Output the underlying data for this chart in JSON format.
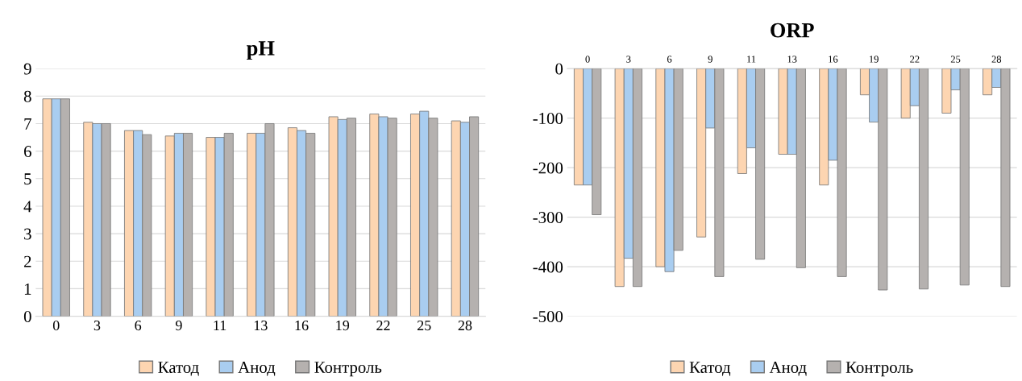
{
  "chart_data": [
    {
      "type": "bar",
      "title": "pH",
      "categories": [
        "0",
        "3",
        "6",
        "9",
        "11",
        "13",
        "16",
        "19",
        "22",
        "25",
        "28"
      ],
      "series": [
        {
          "name": "Катод",
          "color": "#fdd5b1",
          "values": [
            7.9,
            7.05,
            6.75,
            6.55,
            6.5,
            6.65,
            6.85,
            7.25,
            7.35,
            7.35,
            7.1
          ]
        },
        {
          "name": "Анод",
          "color": "#a9cdf0",
          "values": [
            7.9,
            7.0,
            6.75,
            6.65,
            6.5,
            6.65,
            6.75,
            7.15,
            7.25,
            7.45,
            7.05
          ]
        },
        {
          "name": "Контроль",
          "color": "#b5b1af",
          "values": [
            7.9,
            7.0,
            6.6,
            6.65,
            6.65,
            7.0,
            6.65,
            7.2,
            7.2,
            7.2,
            7.25
          ]
        }
      ],
      "ylim": [
        0,
        9
      ],
      "yticks": [
        0,
        1,
        2,
        3,
        4,
        5,
        6,
        7,
        8,
        9
      ],
      "grid": "y",
      "legend": "bottom"
    },
    {
      "type": "bar",
      "title": "ORP",
      "categories": [
        "0",
        "3",
        "6",
        "9",
        "11",
        "13",
        "16",
        "19",
        "22",
        "25",
        "28"
      ],
      "series": [
        {
          "name": "Катод",
          "color": "#fdd5b1",
          "values": [
            -235,
            -440,
            -400,
            -340,
            -212,
            -173,
            -235,
            -53,
            -100,
            -90,
            -53
          ]
        },
        {
          "name": "Анод",
          "color": "#a9cdf0",
          "values": [
            -235,
            -383,
            -410,
            -120,
            -160,
            -173,
            -185,
            -108,
            -75,
            -43,
            -38
          ]
        },
        {
          "name": "Контроль",
          "color": "#b5b1af",
          "values": [
            -295,
            -440,
            -367,
            -420,
            -385,
            -402,
            -420,
            -447,
            -445,
            -437,
            -440
          ]
        }
      ],
      "ylim": [
        -500,
        0
      ],
      "yticks": [
        -500,
        -400,
        -300,
        -200,
        -100,
        0
      ],
      "grid": "y",
      "legend": "bottom"
    }
  ]
}
